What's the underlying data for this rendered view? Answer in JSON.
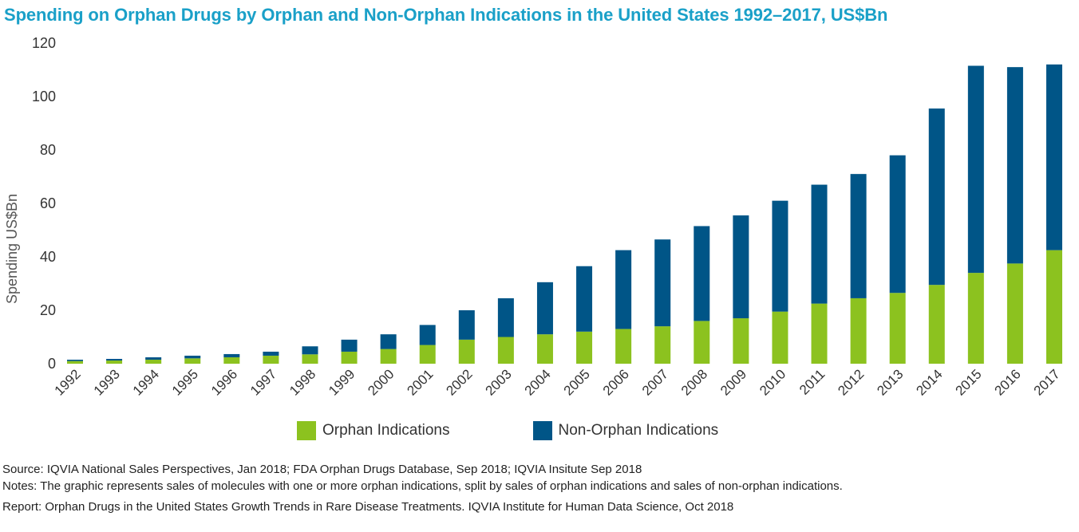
{
  "title": "Spending on Orphan Drugs by Orphan and Non-Orphan Indications in the United States 1992–2017, US$Bn",
  "chart_data": {
    "type": "bar",
    "stacked": true,
    "title": "Spending on Orphan Drugs by Orphan and Non-Orphan Indications in the United States 1992–2017, US$Bn",
    "xlabel": "",
    "ylabel": "Spending US$Bn",
    "ylim": [
      0,
      120
    ],
    "yticks": [
      0,
      20,
      40,
      60,
      80,
      100,
      120
    ],
    "categories": [
      "1992",
      "1993",
      "1994",
      "1995",
      "1996",
      "1997",
      "1998",
      "1999",
      "2000",
      "2001",
      "2002",
      "2003",
      "2004",
      "2005",
      "2006",
      "2007",
      "2008",
      "2009",
      "2010",
      "2011",
      "2012",
      "2013",
      "2014",
      "2015",
      "2016",
      "2017"
    ],
    "series": [
      {
        "name": "Orphan Indications",
        "color": "#8cc21f",
        "values": [
          1,
          1.2,
          1.5,
          2,
          2.4,
          3,
          3.5,
          4.5,
          5.5,
          7,
          9,
          10,
          11,
          12,
          13,
          14,
          16,
          17,
          19.5,
          22.5,
          24.5,
          26.5,
          29.5,
          34,
          37.5,
          42.5
        ]
      },
      {
        "name": "Non-Orphan Indications",
        "color": "#005587",
        "values": [
          0.5,
          0.6,
          0.9,
          1,
          1.2,
          1.5,
          3,
          4.5,
          5.5,
          7.5,
          11,
          14.5,
          19.5,
          24.5,
          29.5,
          32.5,
          35.5,
          38.5,
          41.5,
          44.5,
          46.5,
          51.5,
          66,
          77.5,
          73.5,
          69.5
        ]
      }
    ],
    "legend": "bottom",
    "grid": false
  },
  "legend": {
    "items": [
      {
        "label": "Orphan Indications",
        "color": "#8cc21f"
      },
      {
        "label": "Non-Orphan Indications",
        "color": "#005587"
      }
    ]
  },
  "footer": {
    "source": "Source: IQVIA National Sales Perspectives, Jan 2018; FDA Orphan Drugs Database, Sep 2018; IQVIA Insitute Sep 2018",
    "notes": "Notes: The graphic represents sales of molecules with one or more orphan indications, split by sales of orphan indications and sales of non-orphan indications.",
    "report": "Report: Orphan Drugs in the United States Growth Trends in Rare Disease Treatments. IQVIA Institute for Human Data Science, Oct 2018"
  }
}
